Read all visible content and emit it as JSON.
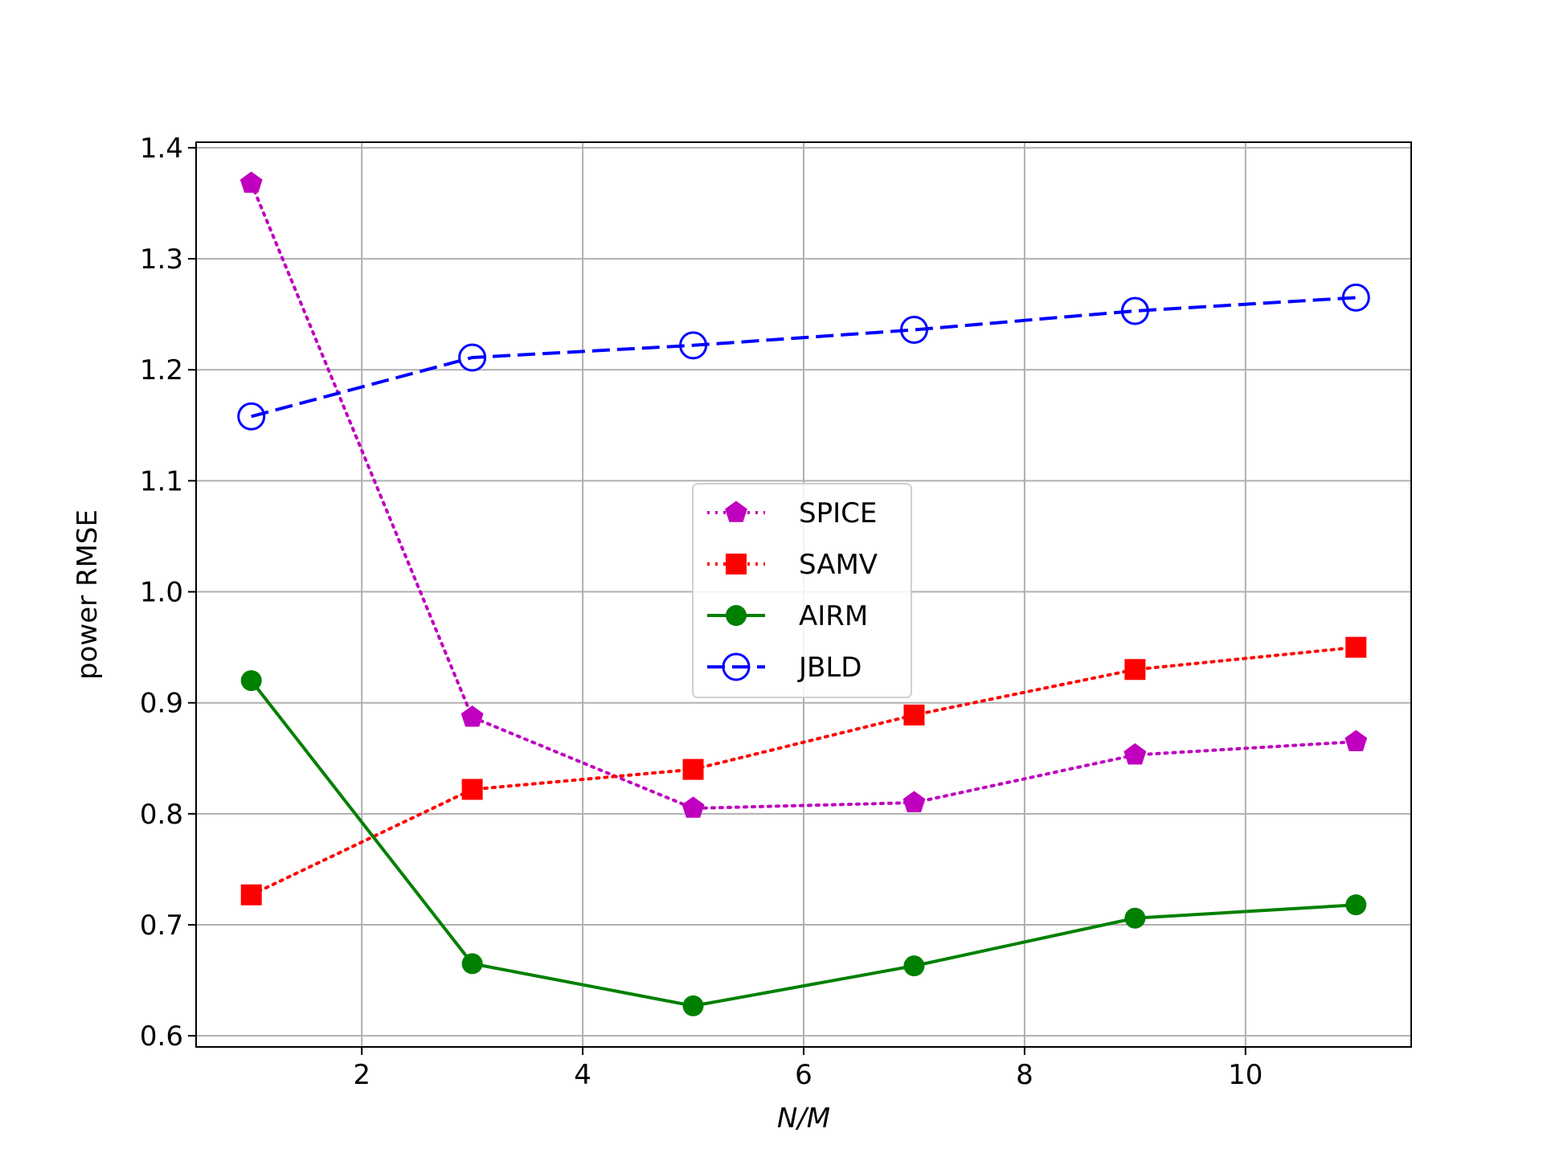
{
  "chart_data": {
    "type": "line",
    "title": "",
    "xlabel": "N/M",
    "ylabel": "power RMSE",
    "xlim": [
      0.5,
      11.5
    ],
    "ylim": [
      0.59,
      1.405
    ],
    "xticks": [
      2,
      4,
      6,
      8,
      10
    ],
    "yticks": [
      0.6,
      0.7,
      0.8,
      0.9,
      1.0,
      1.1,
      1.2,
      1.3,
      1.4
    ],
    "ytick_labels": [
      "0.6",
      "0.7",
      "0.8",
      "0.9",
      "1.0",
      "1.1",
      "1.2",
      "1.3",
      "1.4"
    ],
    "grid": true,
    "legend_position": "center",
    "x": [
      1,
      3,
      5,
      7,
      9,
      11
    ],
    "series": [
      {
        "name": "SPICE",
        "values": [
          1.368,
          0.887,
          0.805,
          0.81,
          0.853,
          0.865
        ],
        "color": "#bf00bf",
        "linestyle": "dotted",
        "marker": "pentagon"
      },
      {
        "name": "SAMV",
        "values": [
          0.727,
          0.822,
          0.84,
          0.889,
          0.93,
          0.95
        ],
        "color": "#ff0000",
        "linestyle": "dotted",
        "marker": "square"
      },
      {
        "name": "AIRM",
        "values": [
          0.92,
          0.665,
          0.627,
          0.663,
          0.706,
          0.718
        ],
        "color": "#008000",
        "linestyle": "solid",
        "marker": "circle"
      },
      {
        "name": "JBLD",
        "values": [
          1.158,
          1.211,
          1.222,
          1.236,
          1.253,
          1.265
        ],
        "color": "#0000ff",
        "linestyle": "dashed",
        "marker": "open-circle"
      }
    ]
  }
}
